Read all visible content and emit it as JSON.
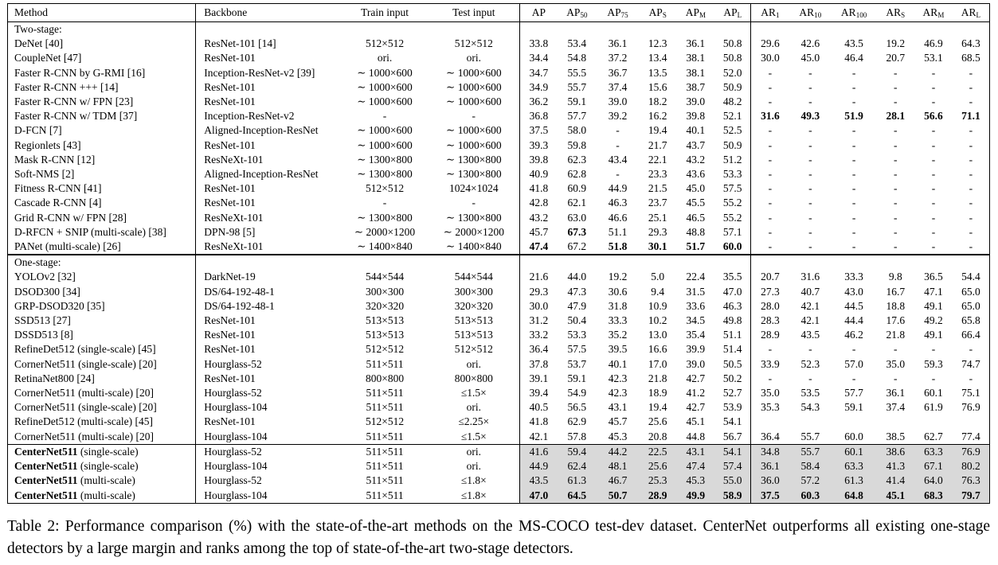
{
  "headers": {
    "method": "Method",
    "backbone": "Backbone",
    "train_input": "Train input",
    "test_input": "Test input",
    "metrics": [
      {
        "base": "AP",
        "sub": ""
      },
      {
        "base": "AP",
        "sub": "50"
      },
      {
        "base": "AP",
        "sub": "75"
      },
      {
        "base": "AP",
        "sub": "S"
      },
      {
        "base": "AP",
        "sub": "M"
      },
      {
        "base": "AP",
        "sub": "L"
      },
      {
        "base": "AR",
        "sub": "1"
      },
      {
        "base": "AR",
        "sub": "10"
      },
      {
        "base": "AR",
        "sub": "100"
      },
      {
        "base": "AR",
        "sub": "S"
      },
      {
        "base": "AR",
        "sub": "M"
      },
      {
        "base": "AR",
        "sub": "L"
      }
    ]
  },
  "sections": [
    {
      "title": "Two-stage:",
      "rows": [
        {
          "method": "DeNet [40]",
          "backbone": "ResNet-101 [14]",
          "train": "512×512",
          "test": "512×512",
          "values": [
            "33.8",
            "53.4",
            "36.1",
            "12.3",
            "36.1",
            "50.8",
            "29.6",
            "42.6",
            "43.5",
            "19.2",
            "46.9",
            "64.3"
          ],
          "bold": []
        },
        {
          "method": "CoupleNet [47]",
          "backbone": "ResNet-101",
          "train": "ori.",
          "test": "ori.",
          "values": [
            "34.4",
            "54.8",
            "37.2",
            "13.4",
            "38.1",
            "50.8",
            "30.0",
            "45.0",
            "46.4",
            "20.7",
            "53.1",
            "68.5"
          ],
          "bold": []
        },
        {
          "method": "Faster R-CNN by G-RMI [16]",
          "backbone": "Inception-ResNet-v2 [39]",
          "train": "∼ 1000×600",
          "test": "∼ 1000×600",
          "values": [
            "34.7",
            "55.5",
            "36.7",
            "13.5",
            "38.1",
            "52.0",
            "-",
            "-",
            "-",
            "-",
            "-",
            "-"
          ],
          "bold": []
        },
        {
          "method": "Faster R-CNN +++ [14]",
          "backbone": "ResNet-101",
          "train": "∼ 1000×600",
          "test": "∼ 1000×600",
          "values": [
            "34.9",
            "55.7",
            "37.4",
            "15.6",
            "38.7",
            "50.9",
            "-",
            "-",
            "-",
            "-",
            "-",
            "-"
          ],
          "bold": []
        },
        {
          "method": "Faster R-CNN w/ FPN [23]",
          "backbone": "ResNet-101",
          "train": "∼ 1000×600",
          "test": "∼ 1000×600",
          "values": [
            "36.2",
            "59.1",
            "39.0",
            "18.2",
            "39.0",
            "48.2",
            "-",
            "-",
            "-",
            "-",
            "-",
            "-"
          ],
          "bold": []
        },
        {
          "method": "Faster R-CNN w/ TDM [37]",
          "backbone": "Inception-ResNet-v2",
          "train": "-",
          "test": "-",
          "values": [
            "36.8",
            "57.7",
            "39.2",
            "16.2",
            "39.8",
            "52.1",
            "31.6",
            "49.3",
            "51.9",
            "28.1",
            "56.6",
            "71.1"
          ],
          "bold": [
            6,
            7,
            8,
            9,
            10,
            11
          ]
        },
        {
          "method": "D-FCN [7]",
          "backbone": "Aligned-Inception-ResNet",
          "train": "∼ 1000×600",
          "test": "∼ 1000×600",
          "values": [
            "37.5",
            "58.0",
            "-",
            "19.4",
            "40.1",
            "52.5",
            "-",
            "-",
            "-",
            "-",
            "-",
            "-"
          ],
          "bold": []
        },
        {
          "method": "Regionlets [43]",
          "backbone": "ResNet-101",
          "train": "∼ 1000×600",
          "test": "∼ 1000×600",
          "values": [
            "39.3",
            "59.8",
            "-",
            "21.7",
            "43.7",
            "50.9",
            "-",
            "-",
            "-",
            "-",
            "-",
            "-"
          ],
          "bold": []
        },
        {
          "method": "Mask R-CNN [12]",
          "backbone": "ResNeXt-101",
          "train": "∼ 1300×800",
          "test": "∼ 1300×800",
          "values": [
            "39.8",
            "62.3",
            "43.4",
            "22.1",
            "43.2",
            "51.2",
            "-",
            "-",
            "-",
            "-",
            "-",
            "-"
          ],
          "bold": []
        },
        {
          "method": "Soft-NMS [2]",
          "backbone": "Aligned-Inception-ResNet",
          "train": "∼ 1300×800",
          "test": "∼ 1300×800",
          "values": [
            "40.9",
            "62.8",
            "-",
            "23.3",
            "43.6",
            "53.3",
            "-",
            "-",
            "-",
            "-",
            "-",
            "-"
          ],
          "bold": []
        },
        {
          "method": "Fitness R-CNN [41]",
          "backbone": "ResNet-101",
          "train": "512×512",
          "test": "1024×1024",
          "values": [
            "41.8",
            "60.9",
            "44.9",
            "21.5",
            "45.0",
            "57.5",
            "-",
            "-",
            "-",
            "-",
            "-",
            "-"
          ],
          "bold": []
        },
        {
          "method": "Cascade R-CNN [4]",
          "backbone": "ResNet-101",
          "train": "-",
          "test": "-",
          "values": [
            "42.8",
            "62.1",
            "46.3",
            "23.7",
            "45.5",
            "55.2",
            "-",
            "-",
            "-",
            "-",
            "-",
            "-"
          ],
          "bold": []
        },
        {
          "method": "Grid R-CNN w/ FPN [28]",
          "backbone": "ResNeXt-101",
          "train": "∼ 1300×800",
          "test": "∼ 1300×800",
          "values": [
            "43.2",
            "63.0",
            "46.6",
            "25.1",
            "46.5",
            "55.2",
            "-",
            "-",
            "-",
            "-",
            "-",
            "-"
          ],
          "bold": []
        },
        {
          "method": "D-RFCN + SNIP (multi-scale) [38]",
          "backbone": "DPN-98 [5]",
          "train": "∼ 2000×1200",
          "test": "∼ 2000×1200",
          "values": [
            "45.7",
            "67.3",
            "51.1",
            "29.3",
            "48.8",
            "57.1",
            "-",
            "-",
            "-",
            "-",
            "-",
            "-"
          ],
          "bold": [
            1
          ]
        },
        {
          "method": "PANet (multi-scale) [26]",
          "backbone": "ResNeXt-101",
          "train": "∼ 1400×840",
          "test": "∼ 1400×840",
          "values": [
            "47.4",
            "67.2",
            "51.8",
            "30.1",
            "51.7",
            "60.0",
            "-",
            "-",
            "-",
            "-",
            "-",
            "-"
          ],
          "bold": [
            0,
            2,
            3,
            4,
            5
          ]
        }
      ]
    },
    {
      "title": "One-stage:",
      "rows": [
        {
          "method": "YOLOv2 [32]",
          "backbone": "DarkNet-19",
          "train": "544×544",
          "test": "544×544",
          "values": [
            "21.6",
            "44.0",
            "19.2",
            "5.0",
            "22.4",
            "35.5",
            "20.7",
            "31.6",
            "33.3",
            "9.8",
            "36.5",
            "54.4"
          ],
          "bold": []
        },
        {
          "method": "DSOD300 [34]",
          "backbone": "DS/64-192-48-1",
          "train": "300×300",
          "test": "300×300",
          "values": [
            "29.3",
            "47.3",
            "30.6",
            "9.4",
            "31.5",
            "47.0",
            "27.3",
            "40.7",
            "43.0",
            "16.7",
            "47.1",
            "65.0"
          ],
          "bold": []
        },
        {
          "method": "GRP-DSOD320 [35]",
          "backbone": "DS/64-192-48-1",
          "train": "320×320",
          "test": "320×320",
          "values": [
            "30.0",
            "47.9",
            "31.8",
            "10.9",
            "33.6",
            "46.3",
            "28.0",
            "42.1",
            "44.5",
            "18.8",
            "49.1",
            "65.0"
          ],
          "bold": []
        },
        {
          "method": "SSD513 [27]",
          "backbone": "ResNet-101",
          "train": "513×513",
          "test": "513×513",
          "values": [
            "31.2",
            "50.4",
            "33.3",
            "10.2",
            "34.5",
            "49.8",
            "28.3",
            "42.1",
            "44.4",
            "17.6",
            "49.2",
            "65.8"
          ],
          "bold": []
        },
        {
          "method": "DSSD513 [8]",
          "backbone": "ResNet-101",
          "train": "513×513",
          "test": "513×513",
          "values": [
            "33.2",
            "53.3",
            "35.2",
            "13.0",
            "35.4",
            "51.1",
            "28.9",
            "43.5",
            "46.2",
            "21.8",
            "49.1",
            "66.4"
          ],
          "bold": []
        },
        {
          "method": "RefineDet512 (single-scale) [45]",
          "backbone": "ResNet-101",
          "train": "512×512",
          "test": "512×512",
          "values": [
            "36.4",
            "57.5",
            "39.5",
            "16.6",
            "39.9",
            "51.4",
            "-",
            "-",
            "-",
            "-",
            "-",
            "-"
          ],
          "bold": []
        },
        {
          "method": "CornerNet511 (single-scale) [20]",
          "backbone": "Hourglass-52",
          "train": "511×511",
          "test": "ori.",
          "values": [
            "37.8",
            "53.7",
            "40.1",
            "17.0",
            "39.0",
            "50.5",
            "33.9",
            "52.3",
            "57.0",
            "35.0",
            "59.3",
            "74.7"
          ],
          "bold": []
        },
        {
          "method": "RetinaNet800 [24]",
          "backbone": "ResNet-101",
          "train": "800×800",
          "test": "800×800",
          "values": [
            "39.1",
            "59.1",
            "42.3",
            "21.8",
            "42.7",
            "50.2",
            "-",
            "-",
            "-",
            "-",
            "-",
            "-"
          ],
          "bold": []
        },
        {
          "method": "CornerNet511 (multi-scale) [20]",
          "backbone": "Hourglass-52",
          "train": "511×511",
          "test": "≤1.5×",
          "values": [
            "39.4",
            "54.9",
            "42.3",
            "18.9",
            "41.2",
            "52.7",
            "35.0",
            "53.5",
            "57.7",
            "36.1",
            "60.1",
            "75.1"
          ],
          "bold": []
        },
        {
          "method": "CornerNet511 (single-scale) [20]",
          "backbone": "Hourglass-104",
          "train": "511×511",
          "test": "ori.",
          "values": [
            "40.5",
            "56.5",
            "43.1",
            "19.4",
            "42.7",
            "53.9",
            "35.3",
            "54.3",
            "59.1",
            "37.4",
            "61.9",
            "76.9"
          ],
          "bold": []
        },
        {
          "method": "RefineDet512 (multi-scale) [45]",
          "backbone": "ResNet-101",
          "train": "512×512",
          "test": "≤2.25×",
          "values": [
            "41.8",
            "62.9",
            "45.7",
            "25.6",
            "45.1",
            "54.1",
            "",
            "",
            "",
            "",
            "",
            ""
          ],
          "bold": []
        },
        {
          "method": "CornerNet511 (multi-scale) [20]",
          "backbone": "Hourglass-104",
          "train": "511×511",
          "test": "≤1.5×",
          "values": [
            "42.1",
            "57.8",
            "45.3",
            "20.8",
            "44.8",
            "56.7",
            "36.4",
            "55.7",
            "60.0",
            "38.5",
            "62.7",
            "77.4"
          ],
          "bold": []
        }
      ]
    }
  ],
  "ours": [
    {
      "name": "CenterNet511",
      "suffix": "(single-scale)",
      "backbone": "Hourglass-52",
      "train": "511×511",
      "test": "ori.",
      "values": [
        "41.6",
        "59.4",
        "44.2",
        "22.5",
        "43.1",
        "54.1",
        "34.8",
        "55.7",
        "60.1",
        "38.6",
        "63.3",
        "76.9"
      ],
      "bold": []
    },
    {
      "name": "CenterNet511",
      "suffix": "(single-scale)",
      "backbone": "Hourglass-104",
      "train": "511×511",
      "test": "ori.",
      "values": [
        "44.9",
        "62.4",
        "48.1",
        "25.6",
        "47.4",
        "57.4",
        "36.1",
        "58.4",
        "63.3",
        "41.3",
        "67.1",
        "80.2"
      ],
      "bold": []
    },
    {
      "name": "CenterNet511",
      "suffix": "(multi-scale)",
      "backbone": "Hourglass-52",
      "train": "511×511",
      "test": "≤1.8×",
      "values": [
        "43.5",
        "61.3",
        "46.7",
        "25.3",
        "45.3",
        "55.0",
        "36.0",
        "57.2",
        "61.3",
        "41.4",
        "64.0",
        "76.3"
      ],
      "bold": []
    },
    {
      "name": "CenterNet511",
      "suffix": "(multi-scale)",
      "backbone": "Hourglass-104",
      "train": "511×511",
      "test": "≤1.8×",
      "values": [
        "47.0",
        "64.5",
        "50.7",
        "28.9",
        "49.9",
        "58.9",
        "37.5",
        "60.3",
        "64.8",
        "45.1",
        "68.3",
        "79.7"
      ],
      "bold": [
        0,
        1,
        2,
        3,
        4,
        5,
        6,
        7,
        8,
        9,
        10,
        11
      ]
    }
  ],
  "caption": "Table 2: Performance comparison (%) with the state-of-the-art methods on the MS-COCO test-dev dataset. CenterNet outperforms all existing one-stage detectors by a large margin and ranks among the top of state-of-the-art two-stage detectors."
}
